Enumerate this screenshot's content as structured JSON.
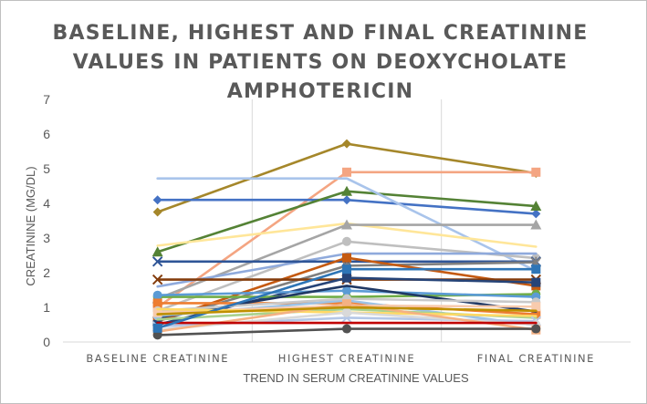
{
  "chart_data": {
    "type": "line",
    "title": "BASELINE, HIGHEST AND FINAL CREATININE VALUES IN PATIENTS ON DEOXYCHOLATE AMPHOTERICIN",
    "xlabel": "TREND IN SERUM CREATININE VALUES",
    "ylabel": "CREATININE (MG/DL)",
    "categories": [
      "BASELINE CREATININE",
      "HIGHEST CREATININE",
      "FINAL CREATININE"
    ],
    "ylim": [
      0,
      7
    ],
    "yticks": [
      0,
      1,
      2,
      3,
      4,
      5,
      6,
      7
    ],
    "grid": "vertical",
    "legend": "none",
    "series": [
      {
        "color": "#A5872A",
        "marker": "diamond",
        "values": [
          3.75,
          5.72,
          4.87
        ]
      },
      {
        "color": "#F4A582",
        "marker": "square",
        "values": [
          1.0,
          4.9,
          4.9
        ]
      },
      {
        "color": "#4472C4",
        "marker": "diamond",
        "values": [
          4.1,
          4.1,
          3.7
        ]
      },
      {
        "color": "#548235",
        "marker": "triangle",
        "values": [
          2.6,
          4.35,
          3.92
        ]
      },
      {
        "color": "#A9C4EB",
        "marker": "none",
        "values": [
          4.72,
          4.72,
          2.05
        ]
      },
      {
        "color": "#FFE699",
        "marker": "none",
        "values": [
          2.78,
          3.42,
          2.75
        ]
      },
      {
        "color": "#A5A5A5",
        "marker": "triangle",
        "values": [
          1.25,
          3.38,
          3.38
        ]
      },
      {
        "color": "#BFBFBF",
        "marker": "circle",
        "values": [
          0.9,
          2.9,
          2.42
        ]
      },
      {
        "color": "#8FAADC",
        "marker": "none",
        "values": [
          1.6,
          2.55,
          2.55
        ]
      },
      {
        "color": "#2F5597",
        "marker": "x",
        "values": [
          2.32,
          2.32,
          2.32
        ]
      },
      {
        "color": "#7F7F7F",
        "marker": "star",
        "values": [
          0.6,
          2.2,
          2.3
        ]
      },
      {
        "color": "#C55A11",
        "marker": "square",
        "values": [
          0.6,
          2.43,
          1.62
        ]
      },
      {
        "color": "#843C0C",
        "marker": "x",
        "values": [
          1.8,
          1.8,
          1.8
        ]
      },
      {
        "color": "#264478",
        "marker": "square",
        "values": [
          0.5,
          1.85,
          1.72
        ]
      },
      {
        "color": "#70AD47",
        "marker": "circle",
        "values": [
          1.3,
          1.3,
          1.38
        ]
      },
      {
        "color": "#5B9BD5",
        "marker": "circle",
        "values": [
          1.35,
          1.48,
          1.3
        ]
      },
      {
        "color": "#ED7D31",
        "marker": "square",
        "values": [
          1.12,
          1.12,
          0.8
        ]
      },
      {
        "color": "#1F3864",
        "marker": "none",
        "values": [
          0.7,
          1.62,
          0.88
        ]
      },
      {
        "color": "#9DC3E6",
        "marker": "circle",
        "values": [
          0.75,
          1.2,
          0.48
        ]
      },
      {
        "color": "#C9C9C9",
        "marker": "circle",
        "values": [
          0.9,
          1.25,
          1.15
        ]
      },
      {
        "color": "#F8CBAD",
        "marker": "square",
        "values": [
          0.85,
          1.05,
          1.02
        ]
      },
      {
        "color": "#A9D18E",
        "marker": "none",
        "values": [
          0.65,
          0.95,
          0.7
        ]
      },
      {
        "color": "#FFD966",
        "marker": "none",
        "values": [
          0.95,
          0.85,
          0.75
        ]
      },
      {
        "color": "#B4C7E7",
        "marker": "x",
        "values": [
          0.45,
          0.7,
          0.6
        ]
      },
      {
        "color": "#D9D9D9",
        "marker": "circle",
        "values": [
          0.35,
          0.85,
          0.5
        ]
      },
      {
        "color": "#F4B183",
        "marker": "square",
        "values": [
          0.3,
          1.1,
          0.35
        ]
      },
      {
        "color": "#525252",
        "marker": "circle",
        "values": [
          0.2,
          0.38,
          0.38
        ]
      },
      {
        "color": "#C00000",
        "marker": "none",
        "values": [
          0.55,
          0.55,
          0.55
        ]
      },
      {
        "color": "#2E75B6",
        "marker": "square",
        "values": [
          0.4,
          2.1,
          2.1
        ]
      },
      {
        "color": "#BF9000",
        "marker": "none",
        "values": [
          0.8,
          1.0,
          0.9
        ]
      }
    ]
  }
}
